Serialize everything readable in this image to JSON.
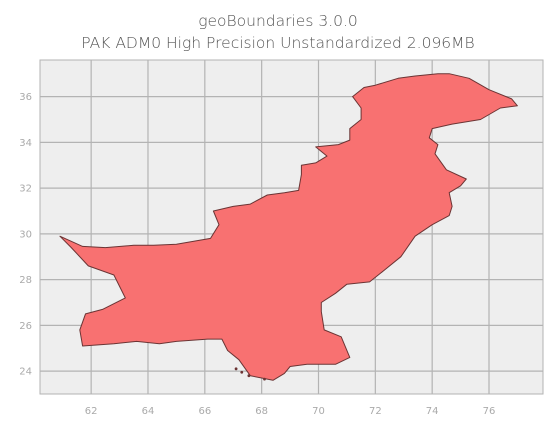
{
  "title": {
    "line1": "geoBoundaries 3.0.0",
    "line2": "PAK ADM0 High Precision Unstandardized 2.096MB"
  },
  "map": {
    "region_name": "PAK",
    "fill_color": "#f87171",
    "edge_color": "#6b3434",
    "background_color": "#eeeeee",
    "grid_color": "#b3b3b3",
    "xlim": [
      60.2,
      77.9
    ],
    "ylim": [
      23.0,
      37.6
    ],
    "x_ticks": [
      62,
      64,
      66,
      68,
      70,
      72,
      74,
      76
    ],
    "y_ticks": [
      24,
      26,
      28,
      30,
      32,
      34,
      36
    ],
    "grid": true
  }
}
